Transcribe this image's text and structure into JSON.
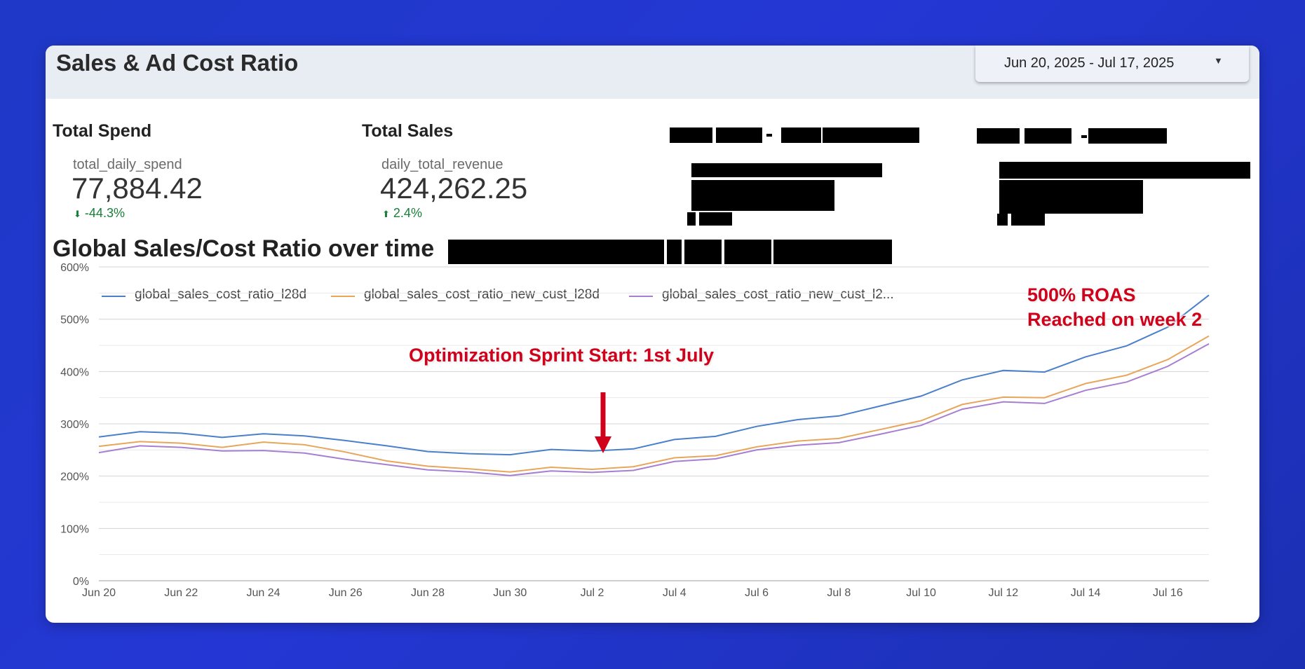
{
  "header": {
    "title": "Sales & Ad Cost Ratio",
    "date_range": "Jun 20, 2025 - Jul 17, 2025",
    "caret": "▼"
  },
  "kpis": {
    "total_spend": {
      "title": "Total Spend",
      "label": "total_daily_spend",
      "value": "77,884.42",
      "delta": "-44.3%",
      "delta_arrow": "⬇",
      "delta_color": "#188038"
    },
    "total_sales": {
      "title": "Total Sales",
      "label": "daily_total_revenue",
      "value": "424,262.25",
      "delta": "2.4%",
      "delta_arrow": "⬆",
      "delta_color": "#188038"
    }
  },
  "chart_section": {
    "title": "Global Sales/Cost Ratio over time"
  },
  "annotations": {
    "sprint": "Optimization Sprint Start: 1st July",
    "roas_line1": "500% ROAS",
    "roas_line2": "Reached on week 2",
    "annotation_color": "#d0021b"
  },
  "chart_data": {
    "type": "line",
    "x": [
      "Jun 20",
      "Jun 21",
      "Jun 22",
      "Jun 23",
      "Jun 24",
      "Jun 25",
      "Jun 26",
      "Jun 27",
      "Jun 28",
      "Jun 29",
      "Jun 30",
      "Jul 1",
      "Jul 2",
      "Jul 3",
      "Jul 4",
      "Jul 5",
      "Jul 6",
      "Jul 7",
      "Jul 8",
      "Jul 9",
      "Jul 10",
      "Jul 11",
      "Jul 12",
      "Jul 13",
      "Jul 14",
      "Jul 15",
      "Jul 16",
      "Jul 17"
    ],
    "x_tick_labels": [
      "Jun 20",
      "Jun 22",
      "Jun 24",
      "Jun 26",
      "Jun 28",
      "Jun 30",
      "Jul 2",
      "Jul 4",
      "Jul 6",
      "Jul 8",
      "Jul 10",
      "Jul 12",
      "Jul 14",
      "Jul 16"
    ],
    "y_tick_labels": [
      "0%",
      "100%",
      "200%",
      "300%",
      "400%",
      "500%",
      "600%"
    ],
    "ylim": [
      0,
      600
    ],
    "grid": true,
    "legend_position": "top",
    "series": [
      {
        "name": "global_sales_cost_ratio_l28d",
        "color": "#4a7fcb",
        "values": [
          275,
          285,
          282,
          274,
          281,
          277,
          268,
          258,
          247,
          243,
          241,
          251,
          248,
          252,
          270,
          276,
          295,
          308,
          315,
          334,
          353,
          384,
          402,
          399,
          428,
          449,
          485,
          546
        ]
      },
      {
        "name": "global_sales_cost_ratio_new_cust_l28d",
        "color": "#e8a65c",
        "values": [
          257,
          266,
          263,
          255,
          265,
          260,
          246,
          229,
          219,
          214,
          208,
          217,
          213,
          218,
          235,
          239,
          256,
          267,
          272,
          289,
          306,
          337,
          351,
          350,
          377,
          393,
          423,
          468
        ]
      },
      {
        "name": "global_sales_cost_ratio_new_cust_l2...",
        "color": "#a77fd2",
        "values": [
          245,
          258,
          255,
          248,
          249,
          244,
          232,
          222,
          212,
          208,
          201,
          210,
          207,
          211,
          228,
          233,
          250,
          259,
          264,
          280,
          297,
          328,
          342,
          339,
          364,
          380,
          410,
          453
        ]
      }
    ]
  }
}
